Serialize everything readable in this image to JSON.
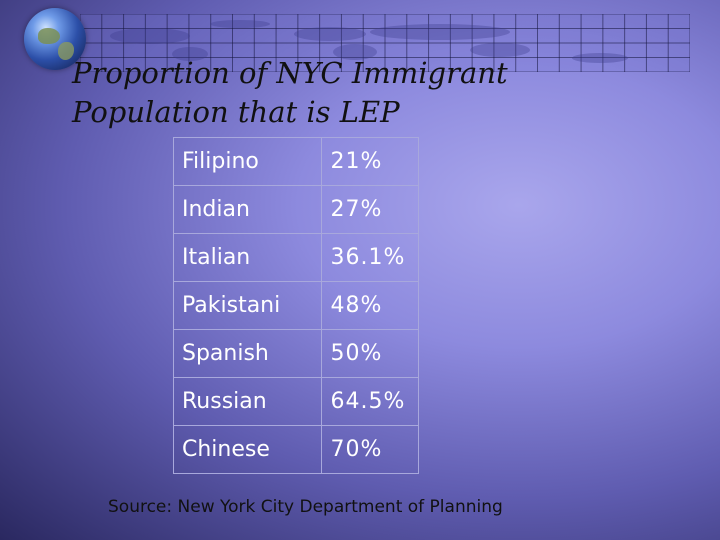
{
  "title": {
    "line1": "Proportion of NYC Immigrant",
    "line2": "Population that is LEP"
  },
  "source": "Source: New York City Department of Planning",
  "colors": {
    "background_center": "#a9a6ec",
    "background_edge": "#2a2860",
    "table_text": "#ffffff",
    "table_border": "#a8a8dc"
  },
  "icons": [
    "globe-icon",
    "world-map-grid"
  ],
  "chart_data": {
    "type": "table",
    "title": "Proportion of NYC Immigrant Population that is LEP",
    "categories": [
      "Filipino",
      "Indian",
      "Italian",
      "Pakistani",
      "Spanish",
      "Russian",
      "Chinese"
    ],
    "values": [
      21,
      27,
      36.1,
      48,
      50,
      64.5,
      70
    ],
    "value_labels": [
      "21%",
      "27%",
      "36.1%",
      "48%",
      "50%",
      "64.5%",
      "70%"
    ],
    "units": "%",
    "source": "New York City Department of Planning"
  }
}
